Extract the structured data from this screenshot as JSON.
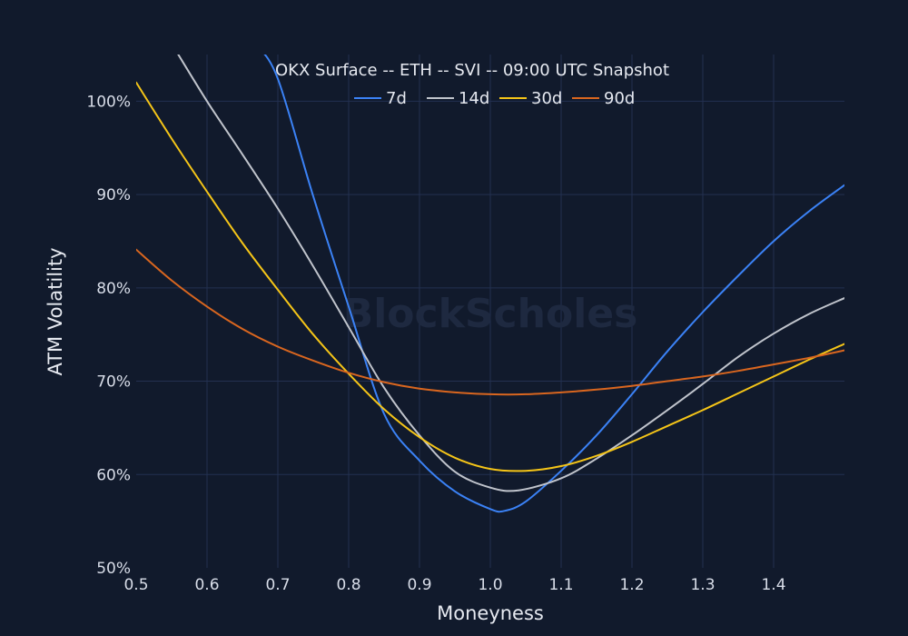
{
  "chart_data": {
    "type": "line",
    "title": "OKX Surface -- ETH -- SVI -- 09:00 UTC Snapshot",
    "xlabel": "Moneyness",
    "ylabel": "ATM Volatility",
    "xlim": [
      0.5,
      1.5
    ],
    "ylim": [
      50,
      105
    ],
    "x_ticks": [
      "0.5",
      "0.6",
      "0.7",
      "0.8",
      "0.9",
      "1.0",
      "1.1",
      "1.2",
      "1.3",
      "1.4"
    ],
    "y_ticks": [
      "50%",
      "60%",
      "70%",
      "80%",
      "90%",
      "100%"
    ],
    "grid": true,
    "legend_position": "top-center",
    "watermark": "BlockScholes",
    "series": [
      {
        "name": "7d",
        "color": "#3b82f6",
        "x": [
          0.67,
          0.7,
          0.75,
          0.8,
          0.85,
          0.9,
          0.95,
          1.0,
          1.02,
          1.05,
          1.1,
          1.15,
          1.2,
          1.25,
          1.3,
          1.35,
          1.4,
          1.45,
          1.5
        ],
        "y": [
          106,
          102.4,
          89.8,
          78.0,
          66.5,
          61.5,
          58.2,
          56.3,
          56.1,
          57.1,
          60.4,
          64.2,
          68.6,
          73.2,
          77.4,
          81.3,
          85.0,
          88.2,
          91.0
        ]
      },
      {
        "name": "14d",
        "color": "#c0c4cc",
        "x": [
          0.553,
          0.6,
          0.65,
          0.7,
          0.75,
          0.8,
          0.85,
          0.9,
          0.95,
          1.0,
          1.04,
          1.1,
          1.15,
          1.2,
          1.25,
          1.3,
          1.35,
          1.4,
          1.45,
          1.5
        ],
        "y": [
          105.8,
          100.0,
          94.3,
          88.5,
          82.3,
          75.8,
          69.3,
          64.2,
          60.3,
          58.6,
          58.3,
          59.6,
          61.7,
          64.2,
          66.9,
          69.7,
          72.6,
          75.1,
          77.2,
          78.9
        ]
      },
      {
        "name": "30d",
        "color": "#f5c518",
        "x": [
          0.5,
          0.55,
          0.6,
          0.65,
          0.7,
          0.75,
          0.8,
          0.85,
          0.9,
          0.95,
          1.0,
          1.05,
          1.1,
          1.15,
          1.2,
          1.25,
          1.3,
          1.35,
          1.4,
          1.45,
          1.5
        ],
        "y": [
          102.0,
          96.0,
          90.3,
          84.8,
          79.8,
          75.0,
          70.8,
          67.0,
          64.0,
          61.8,
          60.6,
          60.4,
          60.9,
          62.0,
          63.5,
          65.2,
          66.9,
          68.7,
          70.5,
          72.3,
          74.0
        ]
      },
      {
        "name": "90d",
        "color": "#d9661f",
        "x": [
          0.5,
          0.55,
          0.6,
          0.65,
          0.7,
          0.75,
          0.8,
          0.85,
          0.9,
          0.95,
          1.0,
          1.05,
          1.1,
          1.15,
          1.2,
          1.25,
          1.3,
          1.35,
          1.4,
          1.45,
          1.5
        ],
        "y": [
          84.1,
          80.8,
          78.0,
          75.6,
          73.7,
          72.2,
          70.9,
          69.9,
          69.2,
          68.8,
          68.6,
          68.6,
          68.8,
          69.1,
          69.5,
          70.0,
          70.5,
          71.1,
          71.8,
          72.5,
          73.3
        ]
      }
    ]
  }
}
